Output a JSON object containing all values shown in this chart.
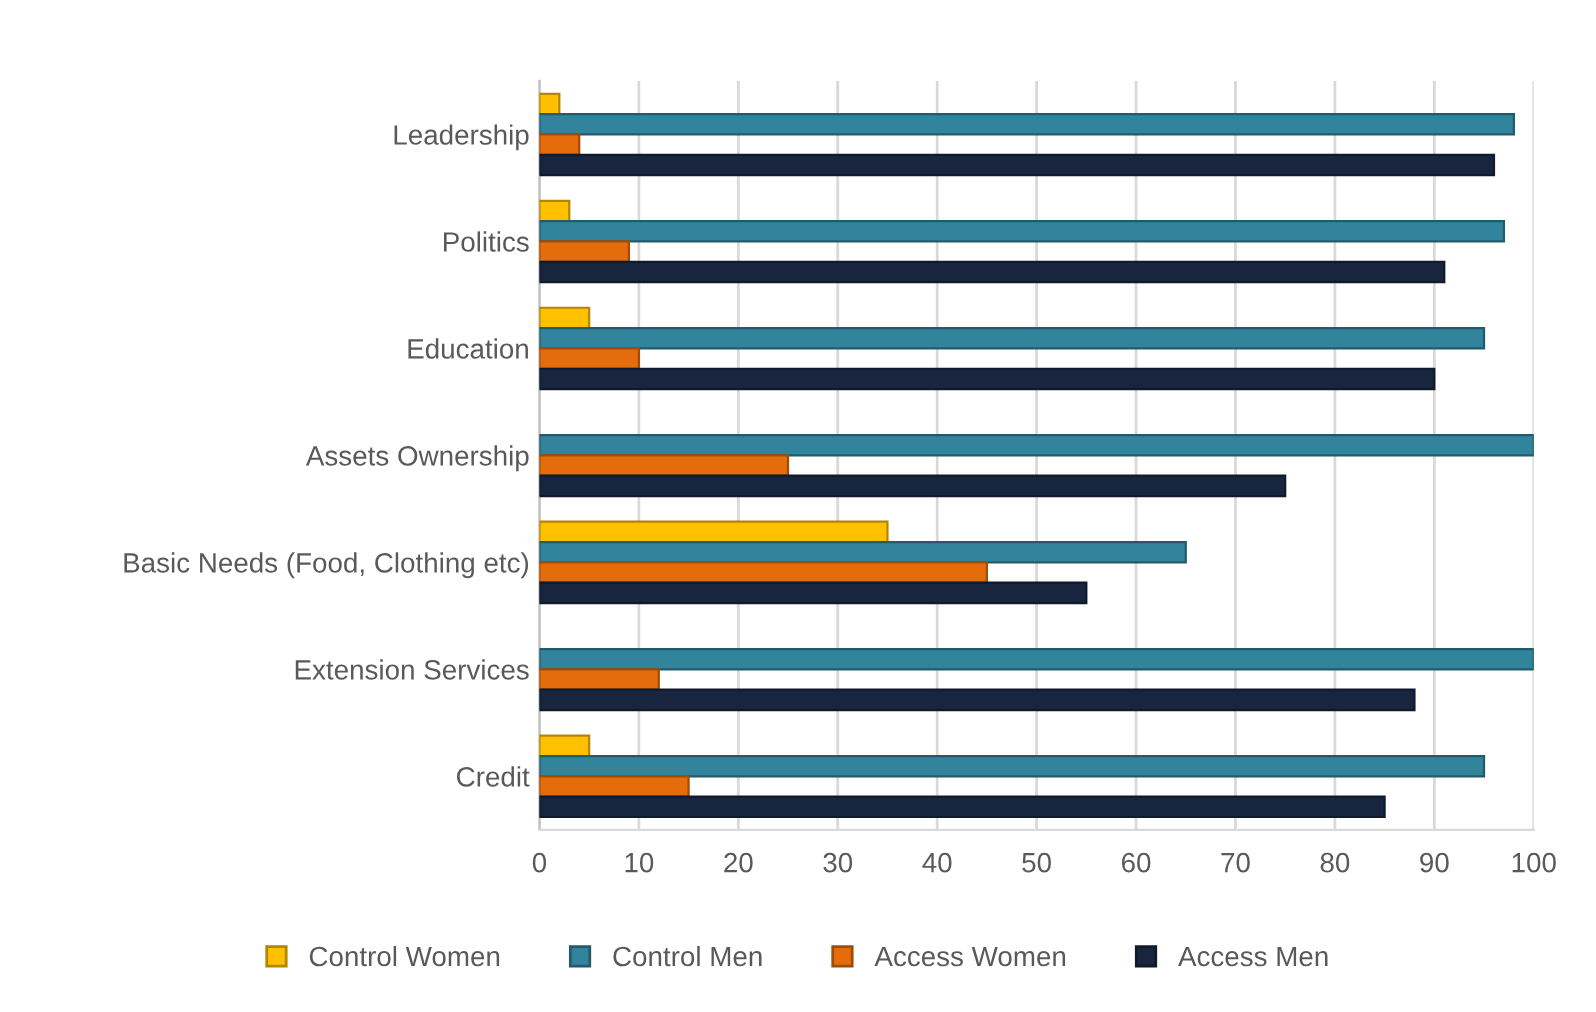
{
  "chart_data": {
    "type": "bar",
    "orientation": "horizontal",
    "categories": [
      "Leadership",
      "Politics",
      "Education",
      "Assets Ownership",
      "Basic Needs (Food, Clothing etc)",
      "Extension Services",
      "Credit"
    ],
    "series": [
      {
        "name": "Control Women",
        "color": "#ffc000",
        "values": [
          2,
          3,
          5,
          0,
          35,
          0,
          5
        ]
      },
      {
        "name": "Control Men",
        "color": "#31849b",
        "values": [
          98,
          97,
          95,
          100,
          65,
          100,
          95
        ]
      },
      {
        "name": "Access Women",
        "color": "#e46c0a",
        "values": [
          4,
          9,
          10,
          25,
          45,
          12,
          15
        ]
      },
      {
        "name": "Access Men",
        "color": "#17253f",
        "values": [
          96,
          91,
          90,
          75,
          55,
          88,
          85
        ]
      }
    ],
    "xlim": [
      0,
      100
    ],
    "xticks": [
      0,
      10,
      20,
      30,
      40,
      50,
      60,
      70,
      80,
      90,
      100
    ],
    "grid": "x",
    "legend": "bottom"
  }
}
